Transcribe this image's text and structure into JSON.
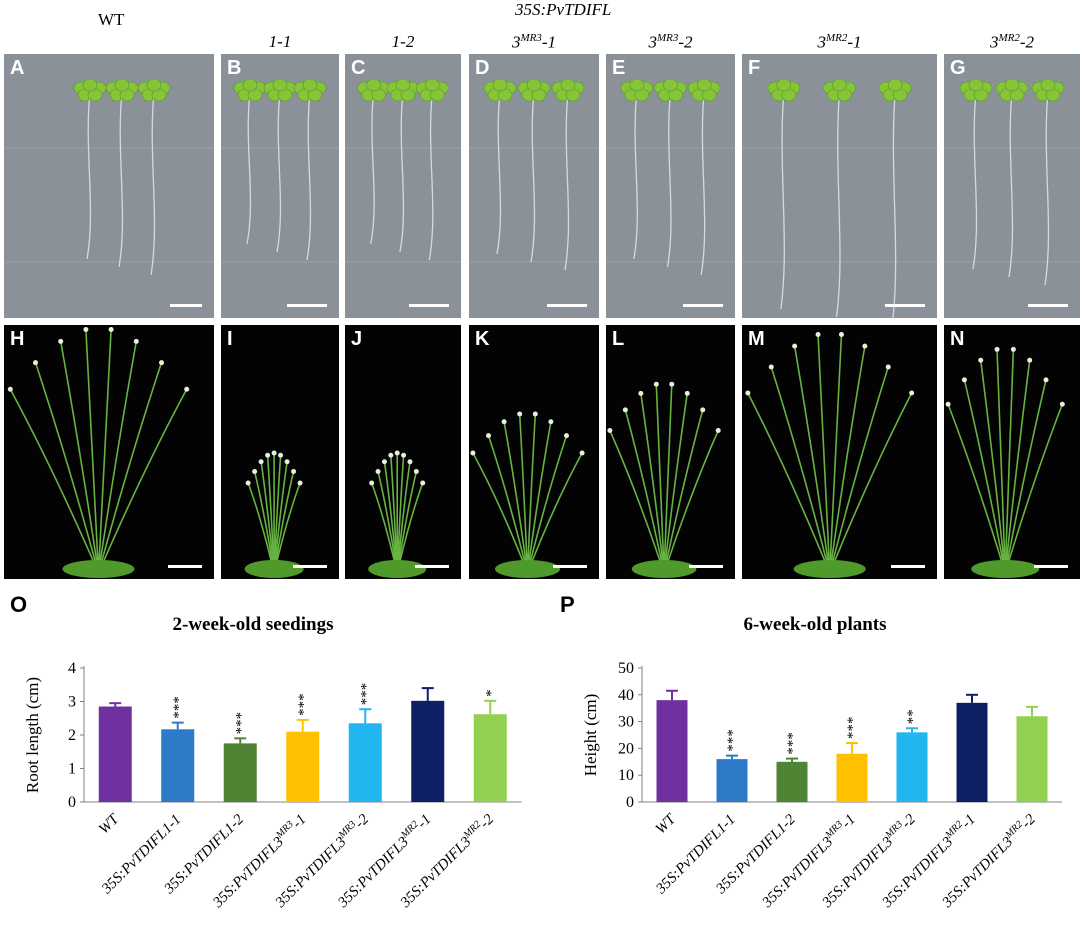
{
  "header": {
    "wt": "WT",
    "group": "35S:PvTDIFL",
    "lines": [
      {
        "base": "1-1",
        "sup": "",
        "suffix": ""
      },
      {
        "base": "1-2",
        "sup": "",
        "suffix": ""
      },
      {
        "base": "3",
        "sup": "MR3",
        "suffix": "-1"
      },
      {
        "base": "3",
        "sup": "MR3",
        "suffix": "-2"
      },
      {
        "base": "3",
        "sup": "MR2",
        "suffix": "-1"
      },
      {
        "base": "3",
        "sup": "MR2",
        "suffix": "-2"
      }
    ]
  },
  "panels": {
    "row1": [
      "A",
      "B",
      "C",
      "D",
      "E",
      "F",
      "G"
    ],
    "row2": [
      "H",
      "I",
      "J",
      "K",
      "L",
      "M",
      "N"
    ]
  },
  "colors": {
    "plate": "#8b9199",
    "leaf": "#86c43a",
    "stem": "#67b341",
    "bars": [
      "#7030a0",
      "#2c7ac8",
      "#4f8435",
      "#ffc000",
      "#22b6f0",
      "#0f1f66",
      "#92d050"
    ]
  },
  "chart_data": [
    {
      "panel_label": "O",
      "type": "bar",
      "title": "2-week-old seedings",
      "ylabel": "Root length (cm)",
      "xlabel": "",
      "ylim": [
        0,
        4
      ],
      "yticks": [
        0,
        1,
        2,
        3,
        4
      ],
      "categories": [
        {
          "base": "WT",
          "sup": "",
          "suffix": ""
        },
        {
          "base": "35S:PvTDIFL1-1",
          "sup": "",
          "suffix": ""
        },
        {
          "base": "35S:PvTDIFL1-2",
          "sup": "",
          "suffix": ""
        },
        {
          "base": "35S:PvTDIFL3",
          "sup": "MR3",
          "suffix": "-1"
        },
        {
          "base": "35S:PvTDIFL3",
          "sup": "MR3",
          "suffix": "-2"
        },
        {
          "base": "35S:PvTDIFL3",
          "sup": "MR2",
          "suffix": "-1"
        },
        {
          "base": "35S:PvTDIFL3",
          "sup": "MR2",
          "suffix": "-2"
        }
      ],
      "values": [
        2.85,
        2.17,
        1.75,
        2.1,
        2.35,
        3.02,
        2.62
      ],
      "errors": [
        0.1,
        0.2,
        0.15,
        0.35,
        0.42,
        0.38,
        0.4
      ],
      "significance": [
        "",
        "***",
        "***",
        "***",
        "***",
        "",
        "*"
      ],
      "grid": false
    },
    {
      "panel_label": "P",
      "type": "bar",
      "title": "6-week-old plants",
      "ylabel": "Height (cm)",
      "xlabel": "",
      "ylim": [
        0,
        50
      ],
      "yticks": [
        0,
        10,
        20,
        30,
        40,
        50
      ],
      "categories": [
        {
          "base": "WT",
          "sup": "",
          "suffix": ""
        },
        {
          "base": "35S:PvTDIFL1-1",
          "sup": "",
          "suffix": ""
        },
        {
          "base": "35S:PvTDIFL1-2",
          "sup": "",
          "suffix": ""
        },
        {
          "base": "35S:PvTDIFL3",
          "sup": "MR3",
          "suffix": "-1"
        },
        {
          "base": "35S:PvTDIFL3",
          "sup": "MR3",
          "suffix": "-2"
        },
        {
          "base": "35S:PvTDIFL3",
          "sup": "MR2",
          "suffix": "-1"
        },
        {
          "base": "35S:PvTDIFL3",
          "sup": "MR2",
          "suffix": "-2"
        }
      ],
      "values": [
        38,
        16,
        15,
        18,
        26,
        37,
        32
      ],
      "errors": [
        3.5,
        1.3,
        1.2,
        4.0,
        1.5,
        3.0,
        3.5
      ],
      "significance": [
        "",
        "***",
        "***",
        "***",
        "**",
        "",
        ""
      ],
      "grid": false
    }
  ]
}
